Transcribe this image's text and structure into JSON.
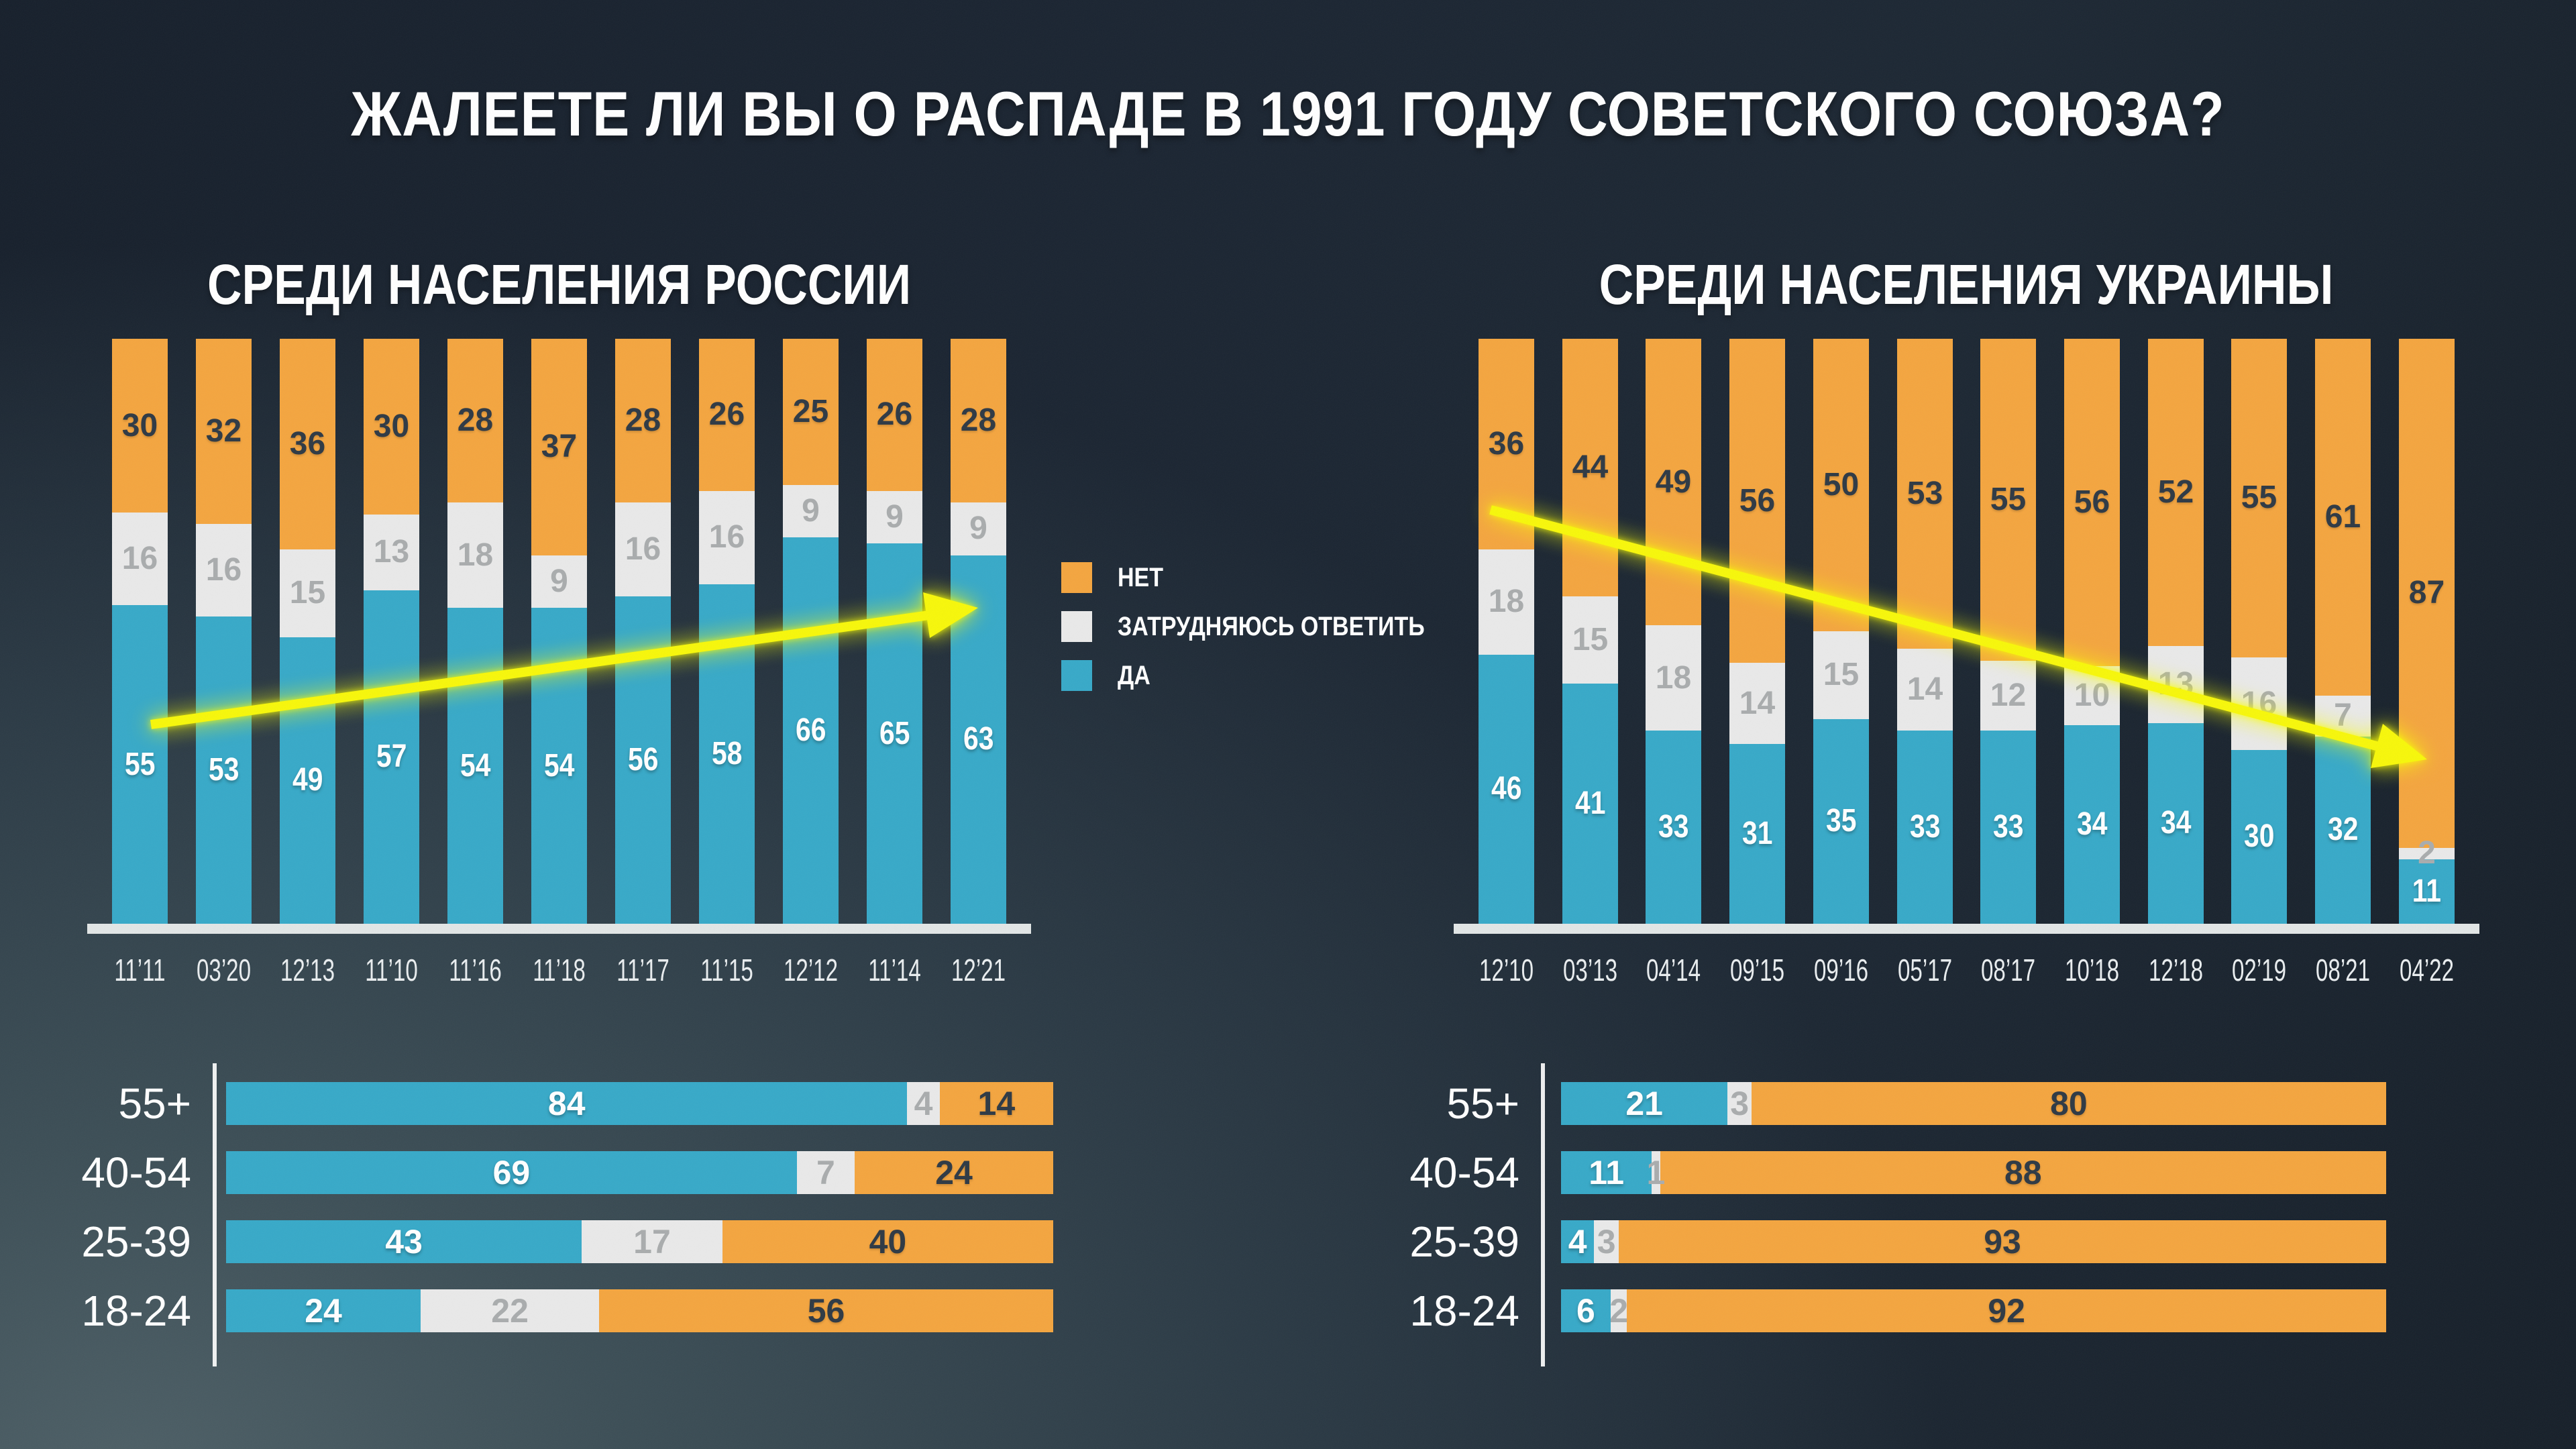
{
  "title": "ЖАЛЕЕТЕ ЛИ ВЫ О РАСПАДЕ В 1991 ГОДУ СОВЕТСКОГО СОЮЗА?",
  "colors": {
    "no": "#F4A53F",
    "dk": "#E9E9E9",
    "yes": "#37A9C8",
    "strip": "#E2E6E6",
    "dark": "#2E3944",
    "graytext": "#A9ACAD",
    "arrow": "#F7F70A"
  },
  "legend": [
    {
      "key": "no",
      "label": "НЕТ"
    },
    {
      "key": "dk",
      "label": "ЗАТРУДНЯЮСЬ ОТВЕТИТЬ"
    },
    {
      "key": "yes",
      "label": "ДА"
    }
  ],
  "chart_data": [
    {
      "id": "russia-trend",
      "type": "bar",
      "subtype": "stacked-column-percent",
      "title": "СРЕДИ НАСЕЛЕНИЯ РОССИИ",
      "categories": [
        "11’11",
        "03’20",
        "12’13",
        "11’10",
        "11’16",
        "11’18",
        "11’17",
        "11’15",
        "12’12",
        "11’14",
        "12’21"
      ],
      "series": [
        {
          "key": "no",
          "name": "НЕТ",
          "values": [
            30,
            32,
            36,
            30,
            28,
            37,
            28,
            26,
            25,
            26,
            28
          ]
        },
        {
          "key": "dk",
          "name": "ЗАТРУДНЯЮСЬ ОТВЕТИТЬ",
          "values": [
            16,
            16,
            15,
            13,
            18,
            9,
            16,
            16,
            9,
            9,
            9
          ]
        },
        {
          "key": "yes",
          "name": "ДА",
          "values": [
            55,
            53,
            49,
            57,
            54,
            54,
            56,
            58,
            66,
            65,
            63
          ]
        }
      ],
      "ylim": [
        0,
        100
      ],
      "trend_arrow": "up"
    },
    {
      "id": "ukraine-trend",
      "type": "bar",
      "subtype": "stacked-column-percent",
      "title": "СРЕДИ НАСЕЛЕНИЯ УКРАИНЫ",
      "categories": [
        "12’10",
        "03’13",
        "04’14",
        "09’15",
        "09’16",
        "05’17",
        "08’17",
        "10’18",
        "12’18",
        "02’19",
        "08’21",
        "04’22"
      ],
      "series": [
        {
          "key": "no",
          "name": "НЕТ",
          "values": [
            36,
            44,
            49,
            56,
            50,
            53,
            55,
            56,
            52,
            55,
            61,
            87
          ]
        },
        {
          "key": "dk",
          "name": "ЗАТРУДНЯЮСЬ ОТВЕТИТЬ",
          "values": [
            18,
            15,
            18,
            14,
            15,
            14,
            12,
            10,
            13,
            16,
            7,
            2
          ]
        },
        {
          "key": "yes",
          "name": "ДА",
          "values": [
            46,
            41,
            33,
            31,
            35,
            33,
            33,
            34,
            34,
            30,
            32,
            11
          ]
        }
      ],
      "ylim": [
        0,
        100
      ],
      "trend_arrow": "down"
    },
    {
      "id": "russia-by-age",
      "type": "bar",
      "subtype": "stacked-bar-horizontal-percent",
      "categories": [
        "55+",
        "40-54",
        "25-39",
        "18-24"
      ],
      "series": [
        {
          "key": "yes",
          "name": "ДА",
          "values": [
            84,
            69,
            43,
            24
          ]
        },
        {
          "key": "dk",
          "name": "ЗАТРУДНЯЮСЬ ОТВЕТИТЬ",
          "values": [
            4,
            7,
            17,
            22
          ]
        },
        {
          "key": "no",
          "name": "НЕТ",
          "values": [
            14,
            24,
            40,
            56
          ]
        }
      ],
      "xlim": [
        0,
        100
      ]
    },
    {
      "id": "ukraine-by-age",
      "type": "bar",
      "subtype": "stacked-bar-horizontal-percent",
      "categories": [
        "55+",
        "40-54",
        "25-39",
        "18-24"
      ],
      "series": [
        {
          "key": "yes",
          "name": "ДА",
          "values": [
            21,
            11,
            4,
            6
          ]
        },
        {
          "key": "dk",
          "name": "ЗАТРУДНЯЮСЬ ОТВЕТИТЬ",
          "values": [
            3,
            1,
            3,
            2
          ]
        },
        {
          "key": "no",
          "name": "НЕТ",
          "values": [
            80,
            88,
            93,
            92
          ]
        }
      ],
      "xlim": [
        0,
        100
      ]
    }
  ]
}
